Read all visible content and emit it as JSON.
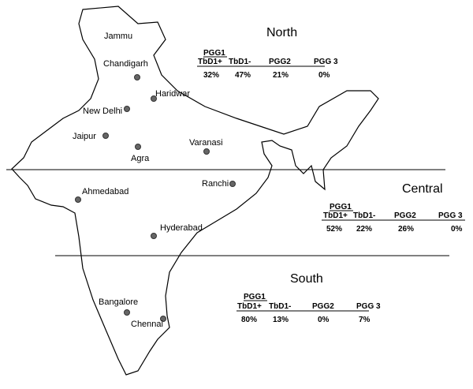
{
  "cities": [
    {
      "label": "Jammu"
    },
    {
      "label": "Chandigarh"
    },
    {
      "label": "Haridwar"
    },
    {
      "label": "New Delhi"
    },
    {
      "label": "Jaipur"
    },
    {
      "label": "Agra"
    },
    {
      "label": "Varanasi"
    },
    {
      "label": "Ranchi"
    },
    {
      "label": "Ahmedabad"
    },
    {
      "label": "Hyderabad"
    },
    {
      "label": "Bangalore"
    },
    {
      "label": "Chennai"
    }
  ],
  "regions": [
    {
      "name": "North",
      "group_header": "PGG1",
      "columns": [
        "TbD1+",
        "TbD1-",
        "PGG2",
        "PGG 3"
      ],
      "values": [
        "32%",
        "47%",
        "21%",
        "0%"
      ]
    },
    {
      "name": "Central",
      "group_header": "PGG1",
      "columns": [
        "TbD1+",
        "TbD1-",
        "PGG2",
        "PGG 3"
      ],
      "values": [
        "52%",
        "22%",
        "26%",
        "0%"
      ]
    },
    {
      "name": "South",
      "group_header": "PGG1",
      "columns": [
        "TbD1+",
        "TbD1-",
        "PGG2",
        "PGG 3"
      ],
      "values": [
        "80%",
        "13%",
        "0%",
        "7%"
      ]
    }
  ]
}
